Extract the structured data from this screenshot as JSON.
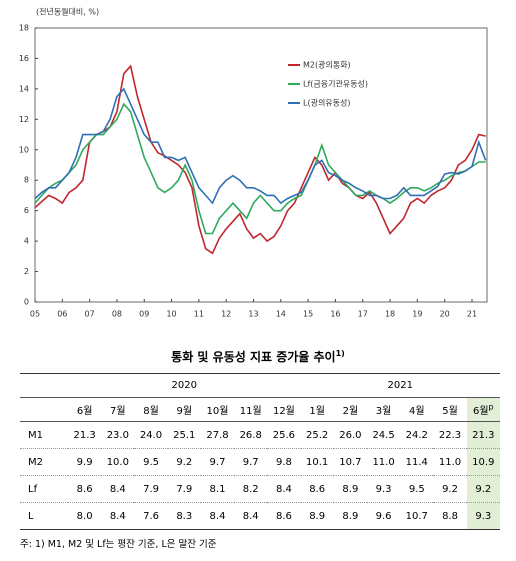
{
  "chart_data": {
    "type": "line",
    "y_label": "(전년동월대비, %)",
    "x": [
      2005,
      2005.25,
      2005.5,
      2005.75,
      2006,
      2006.25,
      2006.5,
      2006.75,
      2007,
      2007.25,
      2007.5,
      2007.75,
      2008,
      2008.25,
      2008.5,
      2008.75,
      2009,
      2009.25,
      2009.5,
      2009.75,
      2010,
      2010.25,
      2010.5,
      2010.75,
      2011,
      2011.25,
      2011.5,
      2011.75,
      2012,
      2012.25,
      2012.5,
      2012.75,
      2013,
      2013.25,
      2013.5,
      2013.75,
      2014,
      2014.25,
      2014.5,
      2014.75,
      2015,
      2015.25,
      2015.5,
      2015.75,
      2016,
      2016.25,
      2016.5,
      2016.75,
      2017,
      2017.25,
      2017.5,
      2017.75,
      2018,
      2018.25,
      2018.5,
      2018.75,
      2019,
      2019.25,
      2019.5,
      2019.75,
      2020,
      2020.25,
      2020.5,
      2020.75,
      2021,
      2021.25,
      2021.5
    ],
    "series": [
      {
        "name": "M2(광의통화)",
        "color": "#c0272d",
        "values": [
          6.2,
          6.6,
          7.0,
          6.8,
          6.5,
          7.2,
          7.5,
          8.0,
          10.5,
          11.0,
          11.2,
          11.5,
          12.5,
          15.0,
          15.5,
          13.5,
          12.0,
          10.5,
          9.8,
          9.6,
          9.3,
          9.0,
          8.5,
          7.5,
          5.0,
          3.5,
          3.2,
          4.2,
          4.8,
          5.3,
          5.8,
          4.8,
          4.2,
          4.5,
          4.0,
          4.3,
          5.0,
          6.0,
          6.5,
          7.5,
          8.5,
          9.5,
          9.0,
          8.0,
          8.5,
          7.8,
          7.5,
          7.0,
          6.8,
          7.2,
          6.5,
          5.5,
          4.5,
          5.0,
          5.5,
          6.5,
          6.8,
          6.5,
          7.0,
          7.3,
          7.5,
          8.0,
          9.0,
          9.3,
          10.0,
          11.0,
          10.9
        ]
      },
      {
        "name": "Lf(금융기관유동성)",
        "color": "#2eaa5c",
        "values": [
          6.5,
          7.0,
          7.5,
          7.8,
          8.0,
          8.5,
          9.0,
          10.0,
          10.5,
          11.0,
          11.0,
          11.5,
          12.0,
          13.0,
          12.5,
          11.0,
          9.5,
          8.5,
          7.5,
          7.2,
          7.5,
          8.0,
          9.0,
          8.0,
          6.0,
          4.5,
          4.5,
          5.5,
          6.0,
          6.5,
          6.0,
          5.5,
          6.5,
          7.0,
          6.5,
          6.0,
          6.0,
          6.5,
          6.8,
          7.0,
          8.0,
          9.0,
          10.3,
          9.0,
          8.5,
          8.0,
          7.5,
          7.0,
          7.0,
          7.3,
          7.0,
          6.8,
          6.5,
          6.8,
          7.2,
          7.5,
          7.5,
          7.3,
          7.5,
          7.8,
          8.0,
          8.3,
          8.5,
          8.6,
          8.9,
          9.2,
          9.2
        ]
      },
      {
        "name": "L(광의유동성)",
        "color": "#2f6fb5",
        "values": [
          6.8,
          7.2,
          7.5,
          7.5,
          8.0,
          8.5,
          9.5,
          11.0,
          11.0,
          11.0,
          11.2,
          12.0,
          13.5,
          14.0,
          13.0,
          12.0,
          11.0,
          10.5,
          10.5,
          9.5,
          9.5,
          9.3,
          9.5,
          8.5,
          7.5,
          7.0,
          6.5,
          7.5,
          8.0,
          8.3,
          8.0,
          7.5,
          7.5,
          7.3,
          7.0,
          7.0,
          6.5,
          6.8,
          7.0,
          7.2,
          8.0,
          9.0,
          9.3,
          8.5,
          8.3,
          8.0,
          7.8,
          7.5,
          7.3,
          7.0,
          7.0,
          6.8,
          6.8,
          7.0,
          7.5,
          7.0,
          7.0,
          7.0,
          7.3,
          7.6,
          8.4,
          8.5,
          8.4,
          8.6,
          8.9,
          10.5,
          9.3
        ]
      }
    ],
    "xlim": [
      2005,
      2021.55
    ],
    "xticks": [
      {
        "value": 2005,
        "label": "05"
      },
      {
        "value": 2006,
        "label": "06"
      },
      {
        "value": 2007,
        "label": "07"
      },
      {
        "value": 2008,
        "label": "08"
      },
      {
        "value": 2009,
        "label": "09"
      },
      {
        "value": 2010,
        "label": "10"
      },
      {
        "value": 2011,
        "label": "11"
      },
      {
        "value": 2012,
        "label": "12"
      },
      {
        "value": 2013,
        "label": "13"
      },
      {
        "value": 2014,
        "label": "14"
      },
      {
        "value": 2015,
        "label": "15"
      },
      {
        "value": 2016,
        "label": "16"
      },
      {
        "value": 2017,
        "label": "17"
      },
      {
        "value": 2018,
        "label": "18"
      },
      {
        "value": 2019,
        "label": "19"
      },
      {
        "value": 2020,
        "label": "20"
      },
      {
        "value": 2021,
        "label": "21"
      }
    ],
    "ylim": [
      0,
      18
    ],
    "yticks": [
      0,
      2,
      4,
      6,
      8,
      10,
      12,
      14,
      16,
      18
    ],
    "legend": "upper-right"
  },
  "table": {
    "title": "통화 및 유동성 지표 증가율 추이",
    "title_note": "1)",
    "years": [
      {
        "label": "2020",
        "span": 7
      },
      {
        "label": "2021",
        "span": 6
      }
    ],
    "months": [
      "6월",
      "7월",
      "8월",
      "9월",
      "10월",
      "11월",
      "12월",
      "1월",
      "2월",
      "3월",
      "4월",
      "5월",
      "6월"
    ],
    "preliminary_mark": "p",
    "rows": [
      [
        "M1",
        "21.3",
        "23.0",
        "24.0",
        "25.1",
        "27.8",
        "26.8",
        "25.6",
        "25.2",
        "26.0",
        "24.5",
        "24.2",
        "22.3",
        "21.3"
      ],
      [
        "M2",
        "9.9",
        "10.0",
        "9.5",
        "9.2",
        "9.7",
        "9.7",
        "9.8",
        "10.1",
        "10.7",
        "11.0",
        "11.4",
        "11.0",
        "10.9"
      ],
      [
        "Lf",
        "8.6",
        "8.4",
        "7.9",
        "7.9",
        "8.1",
        "8.2",
        "8.4",
        "8.6",
        "8.9",
        "9.3",
        "9.5",
        "9.2",
        "9.2"
      ],
      [
        "L",
        "8.0",
        "8.4",
        "7.6",
        "8.3",
        "8.4",
        "8.4",
        "8.6",
        "8.9",
        "8.9",
        "9.6",
        "10.7",
        "8.8",
        "9.3"
      ]
    ],
    "note": "주: 1) M1, M2 및 Lf는 평잔 기준, L은 말잔 기준"
  }
}
